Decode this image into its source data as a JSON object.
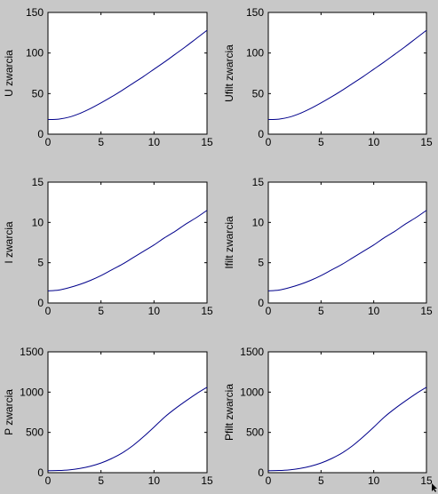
{
  "colors": {
    "background": "#c8c8c8",
    "axes_bg": "#ffffff",
    "line": "#00008b"
  },
  "chart_data": [
    {
      "type": "line",
      "ylabel": "U zwarcia",
      "xlim": [
        0,
        15
      ],
      "ylim": [
        0,
        150
      ],
      "xticks": [
        "0",
        "5",
        "10",
        "15"
      ],
      "yticks": [
        "0",
        "50",
        "100",
        "150"
      ],
      "x": [
        0,
        1,
        2,
        3,
        4,
        5,
        6,
        7,
        8,
        9,
        10,
        11,
        12,
        13,
        14,
        15
      ],
      "y": [
        18,
        18.5,
        21,
        25.5,
        31.5,
        38.5,
        46,
        54,
        62.5,
        71,
        80,
        89,
        98.5,
        108,
        118,
        128
      ]
    },
    {
      "type": "line",
      "ylabel": "Ufilt zwarcia",
      "xlim": [
        0,
        15
      ],
      "ylim": [
        0,
        150
      ],
      "xticks": [
        "0",
        "5",
        "10",
        "15"
      ],
      "yticks": [
        "0",
        "50",
        "100",
        "150"
      ],
      "x": [
        0,
        1,
        2,
        3,
        4,
        5,
        6,
        7,
        8,
        9,
        10,
        11,
        12,
        13,
        14,
        15
      ],
      "y": [
        18,
        18.5,
        21,
        25.5,
        31.5,
        38.5,
        46,
        54,
        62.5,
        71,
        80,
        89,
        98.5,
        108,
        118,
        128
      ]
    },
    {
      "type": "line",
      "ylabel": "I zwarcia",
      "xlim": [
        0,
        15
      ],
      "ylim": [
        0,
        15
      ],
      "xticks": [
        "0",
        "5",
        "10",
        "15"
      ],
      "yticks": [
        "0",
        "5",
        "10",
        "15"
      ],
      "x": [
        0,
        1,
        2,
        3,
        4,
        5,
        6,
        7,
        8,
        9,
        10,
        11,
        12,
        13,
        14,
        15
      ],
      "y": [
        1.5,
        1.6,
        1.9,
        2.3,
        2.8,
        3.4,
        4.1,
        4.8,
        5.6,
        6.4,
        7.2,
        8.1,
        8.9,
        9.8,
        10.6,
        11.5
      ]
    },
    {
      "type": "line",
      "ylabel": "Ifilt zwarcia",
      "xlim": [
        0,
        15
      ],
      "ylim": [
        0,
        15
      ],
      "xticks": [
        "0",
        "5",
        "10",
        "15"
      ],
      "yticks": [
        "0",
        "5",
        "10",
        "15"
      ],
      "x": [
        0,
        1,
        2,
        3,
        4,
        5,
        6,
        7,
        8,
        9,
        10,
        11,
        12,
        13,
        14,
        15
      ],
      "y": [
        1.5,
        1.6,
        1.9,
        2.3,
        2.8,
        3.4,
        4.1,
        4.8,
        5.6,
        6.4,
        7.2,
        8.1,
        8.9,
        9.8,
        10.6,
        11.5
      ]
    },
    {
      "type": "line",
      "ylabel": "P zwarcia",
      "xlim": [
        0,
        15
      ],
      "ylim": [
        0,
        1500
      ],
      "xticks": [
        "0",
        "5",
        "10",
        "15"
      ],
      "yticks": [
        "0",
        "500",
        "1000",
        "1500"
      ],
      "x": [
        0,
        1,
        2,
        3,
        4,
        5,
        6,
        7,
        8,
        9,
        10,
        11,
        12,
        13,
        14,
        15
      ],
      "y": [
        25,
        27,
        35,
        52,
        80,
        120,
        175,
        245,
        335,
        445,
        565,
        690,
        795,
        890,
        980,
        1060
      ]
    },
    {
      "type": "line",
      "ylabel": "Pfilt zwarcia",
      "xlim": [
        0,
        15
      ],
      "ylim": [
        0,
        1500
      ],
      "xticks": [
        "0",
        "5",
        "10",
        "15"
      ],
      "yticks": [
        "0",
        "500",
        "1000",
        "1500"
      ],
      "x": [
        0,
        1,
        2,
        3,
        4,
        5,
        6,
        7,
        8,
        9,
        10,
        11,
        12,
        13,
        14,
        15
      ],
      "y": [
        25,
        27,
        35,
        52,
        80,
        120,
        175,
        245,
        335,
        445,
        565,
        690,
        795,
        890,
        980,
        1060
      ]
    }
  ]
}
